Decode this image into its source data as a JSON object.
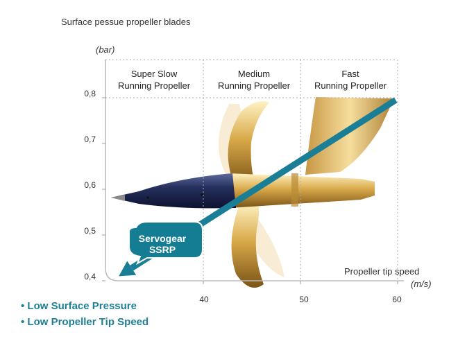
{
  "chart_data": {
    "type": "line",
    "ylabel": "Surface pessue propeller blades",
    "yunit": "(bar)",
    "xlabel": "Propeller tip speed",
    "xunit": "(m/s)",
    "yticks": [
      "0,4",
      "0,5",
      "0,6",
      "0,7",
      "0,8"
    ],
    "ytick_values": [
      0.4,
      0.5,
      0.6,
      0.7,
      0.8
    ],
    "xticks": [
      "40",
      "50",
      "60"
    ],
    "xtick_values": [
      40,
      50,
      60
    ],
    "xlim": [
      30,
      61
    ],
    "ylim": [
      0.38,
      0.92
    ],
    "zones": [
      {
        "label_line1": "Super Slow",
        "label_line2": "Running Propeller",
        "x_start": 30,
        "x_end": 40
      },
      {
        "label_line1": "Medium",
        "label_line2": "Running Propeller",
        "x_start": 40,
        "x_end": 50
      },
      {
        "label_line1": "Fast",
        "label_line2": "Running Propeller",
        "x_start": 50,
        "x_end": 60
      }
    ],
    "trend_arrow": {
      "x": [
        59.8,
        31.3
      ],
      "y": [
        0.795,
        0.41
      ]
    },
    "badge": {
      "line1": "Servogear",
      "line2": "SSRP"
    },
    "colors": {
      "arrow": "#1a7f96",
      "badge": "#147c93",
      "grid": "#aaaaaa"
    }
  },
  "bullets": [
    "• Low Surface Pressure",
    "• Low Propeller Tip Speed"
  ]
}
